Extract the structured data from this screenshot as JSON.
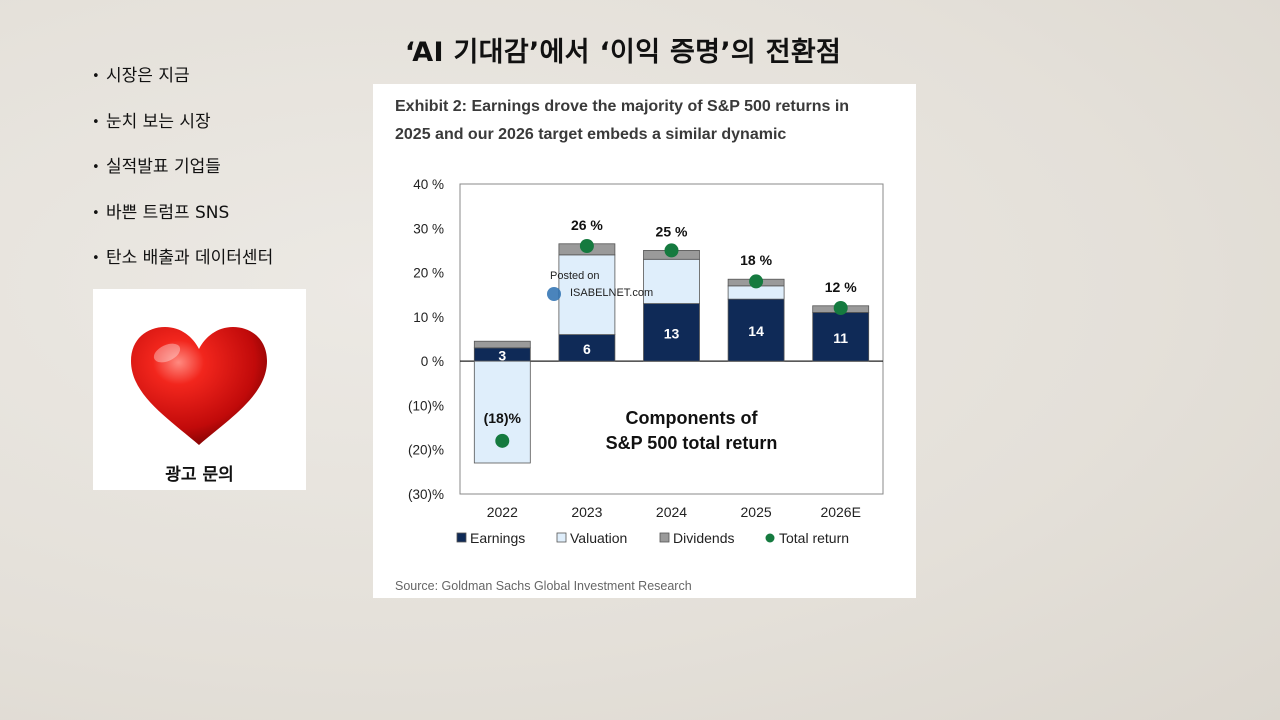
{
  "slide": {
    "title": "‘AI 기대감’에서 ‘이익 증명’의 전환점",
    "bullets": [
      "시장은 지금",
      "눈치 보는 시장",
      "실적발표 기업들",
      "바쁜 트럼프 SNS",
      "탄소 배출과 데이터센터"
    ],
    "ad": {
      "icon": "heart-icon",
      "label": "광고 문의"
    }
  },
  "chart_data": {
    "type": "bar",
    "title_lines": [
      "Exhibit 2: Earnings drove the majority of S&P 500 returns in",
      "2025 and our 2026 target embeds a similar dynamic"
    ],
    "categories": [
      "2022",
      "2023",
      "2024",
      "2025",
      "2026E"
    ],
    "series": [
      {
        "name": "Earnings",
        "values": [
          3,
          6,
          13,
          14,
          11
        ],
        "color": "#0f2a57"
      },
      {
        "name": "Valuation",
        "values": [
          -23,
          18,
          10,
          3,
          0
        ],
        "color": "#dfeefb"
      },
      {
        "name": "Dividends",
        "values": [
          1.5,
          2.5,
          2,
          1.5,
          1.5
        ],
        "color": "#9a9a9a"
      },
      {
        "name": "Total return",
        "values": [
          -18,
          26,
          25,
          18,
          12
        ],
        "color": "#157a3f"
      }
    ],
    "earnings_labels": [
      "3",
      "6",
      "13",
      "14",
      "11"
    ],
    "total_labels": [
      "(18)%",
      "26 %",
      "25 %",
      "18 %",
      "12 %"
    ],
    "y_ticks": [
      40,
      30,
      20,
      10,
      0,
      -10,
      -20,
      -30
    ],
    "y_tick_labels": [
      "40 %",
      "30 %",
      "20 %",
      "10 %",
      "0 %",
      "(10)%",
      "(20)%",
      "(30)%"
    ],
    "ylim": [
      -30,
      40
    ],
    "annotation_lines": [
      "Components of",
      "S&P 500 total return"
    ],
    "watermark": [
      "Posted on",
      "ISABELNET.com"
    ],
    "legend_position": "bottom",
    "grid": false,
    "source": "Source: Goldman Sachs Global Investment Research"
  }
}
